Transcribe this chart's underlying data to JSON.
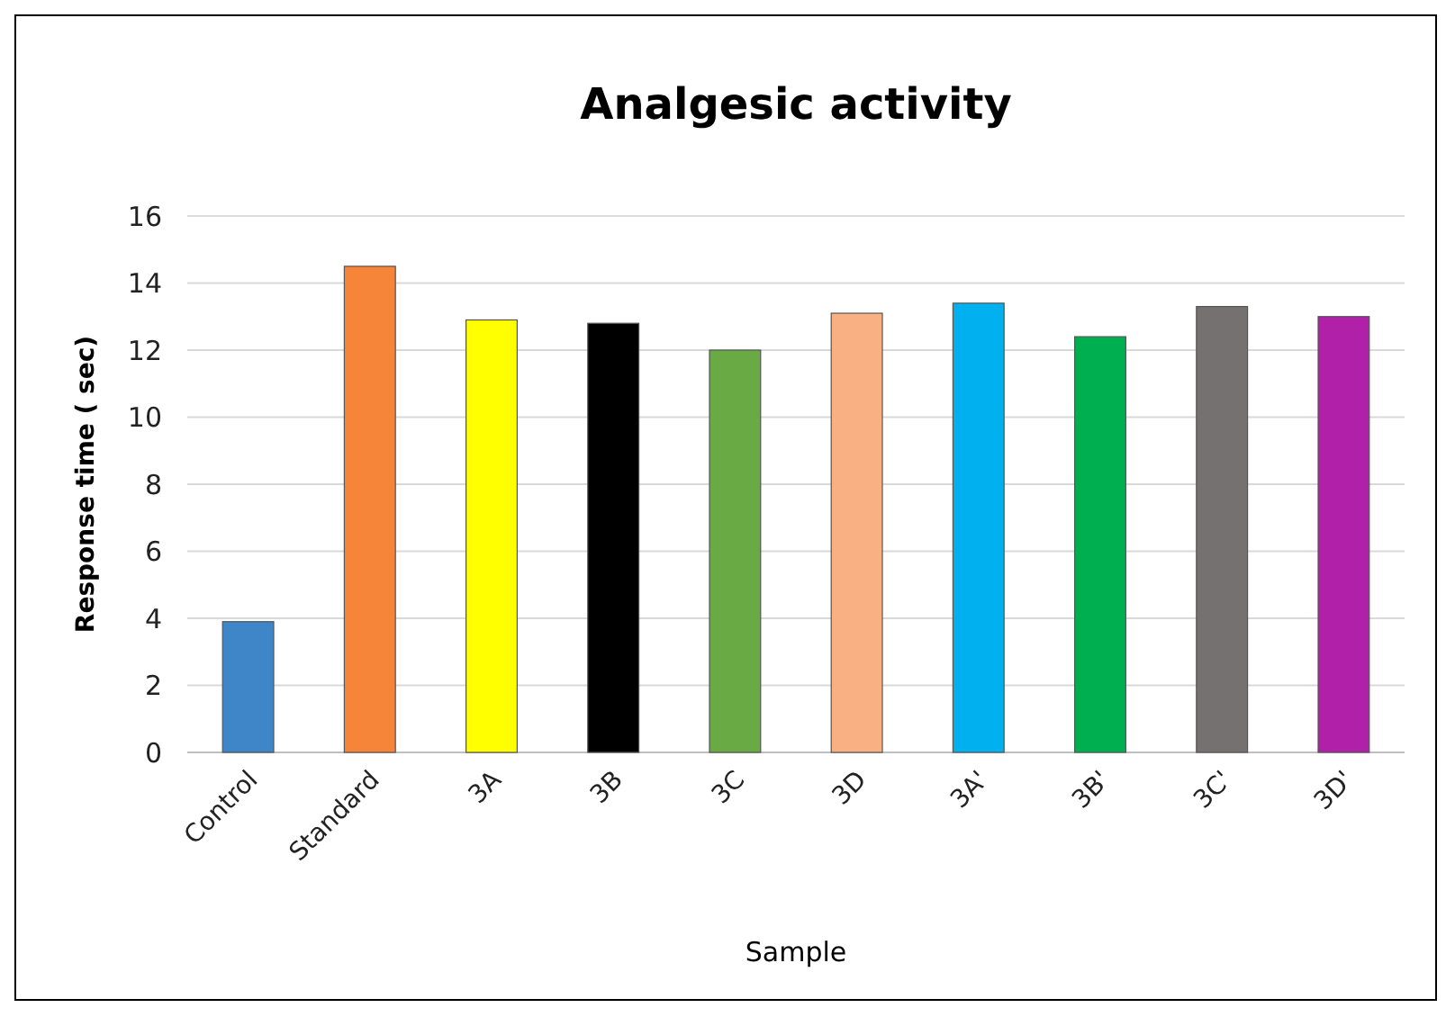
{
  "chart_data": {
    "type": "bar",
    "title": "Analgesic activity",
    "xlabel": "Sample",
    "ylabel": "Response time ( sec)",
    "categories": [
      "Control",
      "Standard",
      "3A",
      "3B",
      "3C",
      "3D",
      "3A'",
      "3B'",
      "3C'",
      "3D'"
    ],
    "values": [
      3.9,
      14.5,
      12.9,
      12.8,
      12.0,
      13.1,
      13.4,
      12.4,
      13.3,
      13.0
    ],
    "colors": [
      "#3e86c8",
      "#f6853a",
      "#ffff00",
      "#000000",
      "#6aaa44",
      "#f9b184",
      "#00b0ef",
      "#00b050",
      "#767171",
      "#b020a8"
    ],
    "ylim": [
      0,
      16
    ],
    "yticks": [
      0,
      2,
      4,
      6,
      8,
      10,
      12,
      14,
      16
    ],
    "grid": "y"
  }
}
